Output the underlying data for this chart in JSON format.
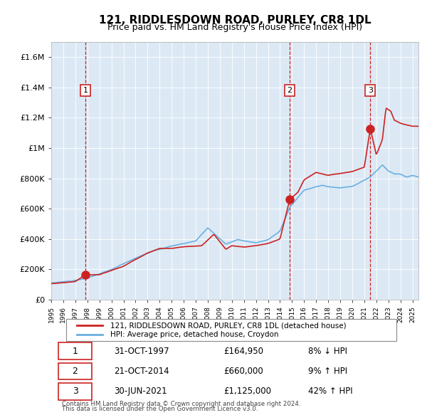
{
  "title": "121, RIDDLESDOWN ROAD, PURLEY, CR8 1DL",
  "subtitle": "Price paid vs. HM Land Registry's House Price Index (HPI)",
  "bg_color": "#dce9f5",
  "plot_bg_color": "#dce9f5",
  "hpi_color": "#6ab0e0",
  "price_color": "#cc2222",
  "sale_marker_color": "#cc2222",
  "vline_color": "#cc2222",
  "sales": [
    {
      "date_num": 1997.83,
      "price": 164950,
      "label": "1"
    },
    {
      "date_num": 2014.81,
      "price": 660000,
      "label": "2"
    },
    {
      "date_num": 2021.5,
      "price": 1125000,
      "label": "3"
    }
  ],
  "sale_dates_text": [
    "31-OCT-1997",
    "21-OCT-2014",
    "30-JUN-2021"
  ],
  "sale_prices_text": [
    "£164,950",
    "£660,000",
    "£1,125,000"
  ],
  "sale_hpi_text": [
    "8% ↓ HPI",
    "9% ↑ HPI",
    "42% ↑ HPI"
  ],
  "legend_line1": "121, RIDDLESDOWN ROAD, PURLEY, CR8 1DL (detached house)",
  "legend_line2": "HPI: Average price, detached house, Croydon",
  "footer1": "Contains HM Land Registry data © Crown copyright and database right 2024.",
  "footer2": "This data is licensed under the Open Government Licence v3.0.",
  "ylim": [
    0,
    1700000
  ],
  "yticks": [
    0,
    200000,
    400000,
    600000,
    800000,
    1000000,
    1200000,
    1400000,
    1600000
  ],
  "ytick_labels": [
    "£0",
    "£200K",
    "£400K",
    "£600K",
    "£800K",
    "£1M",
    "£1.2M",
    "£1.4M",
    "£1.6M"
  ],
  "xmin": 1995.0,
  "xmax": 2025.5
}
